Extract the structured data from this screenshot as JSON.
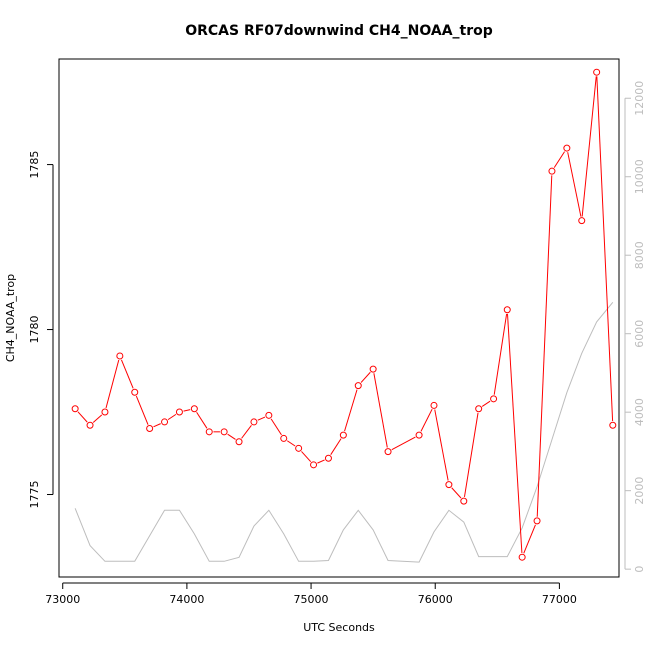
{
  "chart_data": {
    "type": "line",
    "title": "ORCAS RF07downwind CH4_NOAA_trop",
    "xlabel": "UTC Seconds",
    "ylabel": "CH4_NOAA_trop",
    "xlim": [
      72970,
      77480
    ],
    "ylim": [
      1772.5,
      1788.2
    ],
    "y2lim": [
      -200,
      13000
    ],
    "x_ticks": [
      73000,
      74000,
      75000,
      76000,
      77000
    ],
    "y_ticks": [
      1775,
      1780,
      1785
    ],
    "y2_ticks": [
      0,
      2000,
      4000,
      6000,
      8000,
      10000,
      12000
    ],
    "series": [
      {
        "role": "primary",
        "color": "#ff0000",
        "marker": "open-circle",
        "x": [
          73100,
          73220,
          73340,
          73460,
          73580,
          73700,
          73820,
          73940,
          74060,
          74180,
          74300,
          74420,
          74540,
          74660,
          74780,
          74900,
          75020,
          75140,
          75260,
          75380,
          75500,
          75620,
          75870,
          75990,
          76110,
          76230,
          76350,
          76470,
          76580,
          76700,
          76820,
          76940,
          77060,
          77180,
          77300,
          77430
        ],
        "y": [
          1777.6,
          1777.1,
          1777.5,
          1779.2,
          1778.1,
          1777.0,
          1777.2,
          1777.5,
          1777.6,
          1776.9,
          1776.9,
          1776.6,
          1777.2,
          1777.4,
          1776.7,
          1776.4,
          1775.9,
          1776.1,
          1776.8,
          1778.3,
          1778.8,
          1776.3,
          1776.8,
          1777.7,
          1775.3,
          1774.8,
          1777.6,
          1777.9,
          1780.6,
          1773.1,
          1774.2,
          1784.8,
          1785.5,
          1783.3,
          1787.8,
          1777.1
        ]
      },
      {
        "role": "secondary",
        "color": "#bdbdbd",
        "x": [
          73100,
          73220,
          73340,
          73460,
          73580,
          73700,
          73820,
          73940,
          74060,
          74180,
          74300,
          74420,
          74540,
          74660,
          74780,
          74900,
          75020,
          75140,
          75260,
          75380,
          75500,
          75620,
          75870,
          75990,
          76110,
          76230,
          76350,
          76470,
          76580,
          76700,
          76820,
          76940,
          77060,
          77180,
          77300,
          77430
        ],
        "y": [
          1550,
          600,
          200,
          200,
          200,
          850,
          1500,
          1500,
          900,
          200,
          200,
          300,
          1100,
          1500,
          900,
          200,
          200,
          220,
          1000,
          1500,
          1000,
          220,
          180,
          950,
          1500,
          1200,
          320,
          320,
          320,
          1050,
          2100,
          3300,
          4500,
          5500,
          6300,
          6800
        ]
      }
    ]
  }
}
